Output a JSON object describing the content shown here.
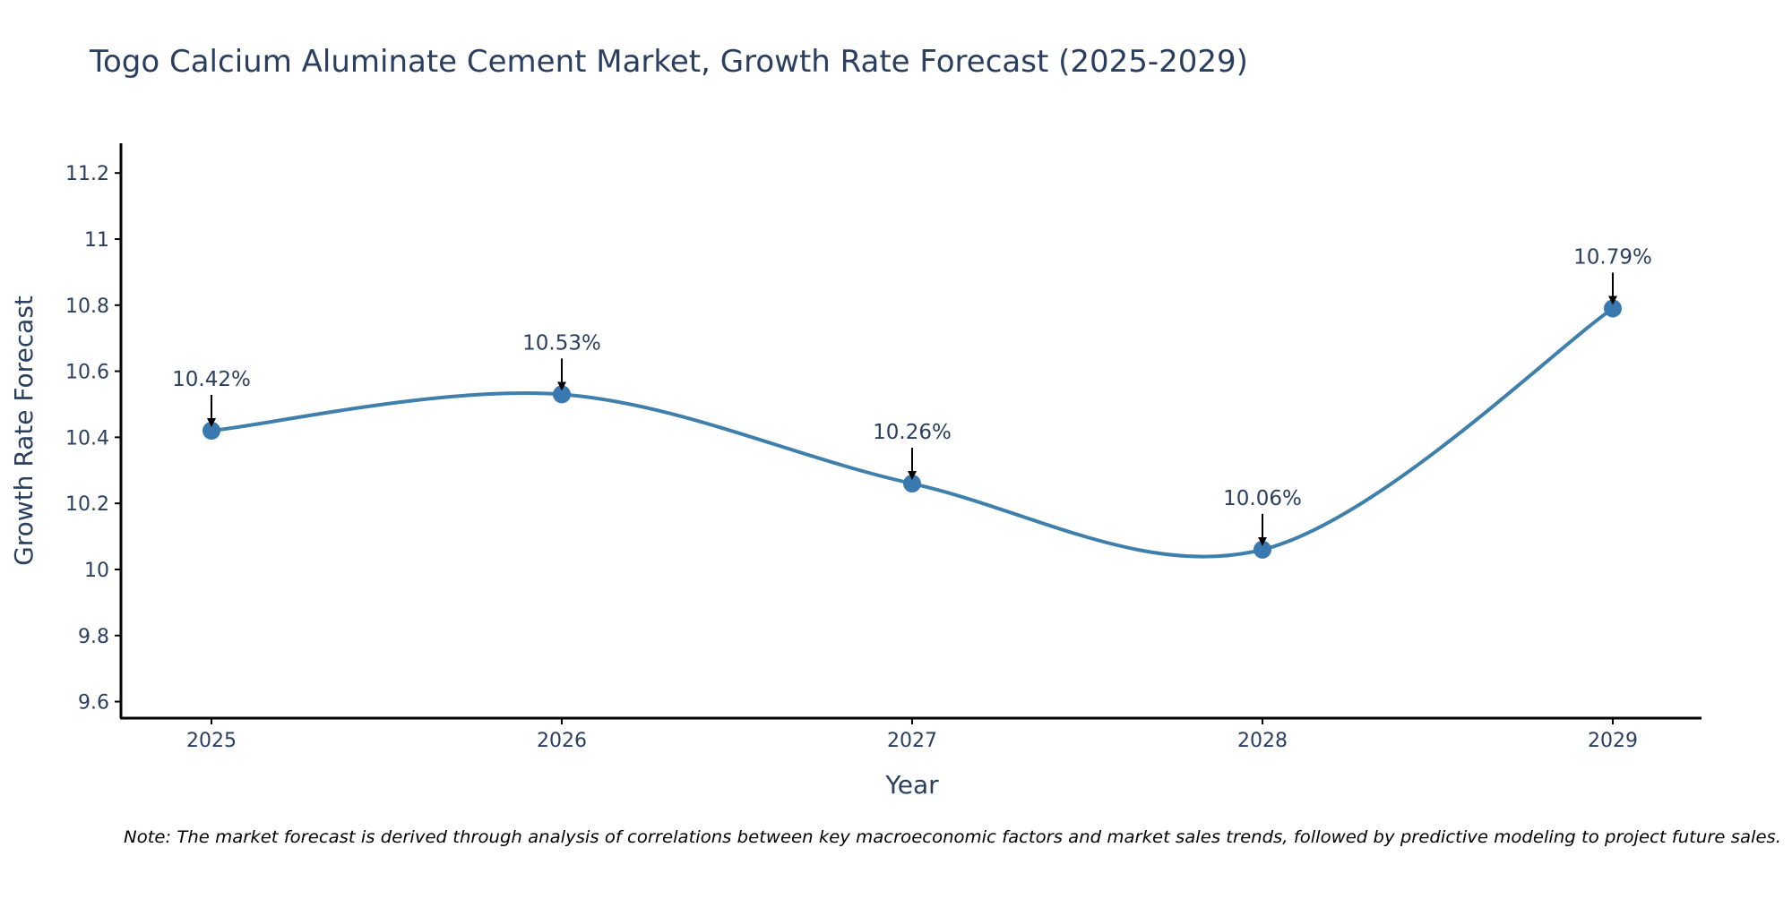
{
  "chart_data": {
    "type": "line",
    "title": "Togo Calcium Aluminate Cement Market, Growth Rate Forecast (2025-2029)",
    "xlabel": "Year",
    "ylabel": "Growth Rate Forecast",
    "categories": [
      "2025",
      "2026",
      "2027",
      "2028",
      "2029"
    ],
    "series": [
      {
        "name": "Growth Rate Forecast",
        "values": [
          10.42,
          10.53,
          10.26,
          10.06,
          10.79
        ],
        "labels": [
          "10.42%",
          "10.53%",
          "10.26%",
          "10.06%",
          "10.79%"
        ]
      }
    ],
    "ylim": [
      9.55,
      11.29
    ],
    "yticks": [
      9.6,
      9.8,
      10,
      10.2,
      10.4,
      10.6,
      10.8,
      11,
      11.2
    ],
    "ytick_labels": [
      "9.6",
      "9.8",
      "10",
      "10.2",
      "10.4",
      "10.6",
      "10.8",
      "11",
      "11.2"
    ],
    "line_shape": "spline",
    "grid": false,
    "note": "Note: The market forecast is derived through analysis of correlations between key macroeconomic factors and market sales trends, followed by predictive modeling to project future sales.",
    "colors": {
      "line": "#3f7fab",
      "marker": "#3a78b0",
      "axis": "#000000",
      "text": "#2a3f5f",
      "arrow": "#000000"
    }
  }
}
